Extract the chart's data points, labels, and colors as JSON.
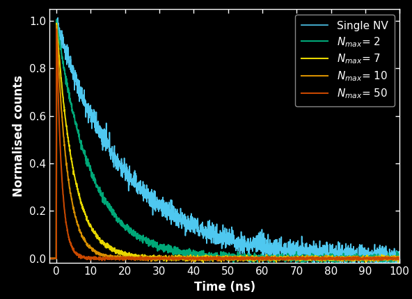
{
  "background_color": "#000000",
  "axes_color": "#000000",
  "text_color": "#ffffff",
  "tick_color": "#ffffff",
  "spine_color": "#ffffff",
  "xlabel": "Time (ns)",
  "ylabel": "Normalised counts",
  "xlim": [
    -2,
    100
  ],
  "ylim": [
    -0.02,
    1.05
  ],
  "xticks": [
    0,
    10,
    20,
    30,
    40,
    50,
    60,
    70,
    80,
    90,
    100
  ],
  "yticks": [
    0.0,
    0.2,
    0.4,
    0.6,
    0.8,
    1.0
  ],
  "series": [
    {
      "label": "Single NV",
      "label_fmt": "Single NV",
      "color": "#4fc8f0",
      "tau": 20.0,
      "noise": 0.022,
      "lw": 1.2,
      "rise_samples": 3,
      "baseline": 0.07
    },
    {
      "label": "N_max= 2",
      "label_fmt": "$N_{max}$= 2",
      "color": "#00a878",
      "tau": 10.0,
      "noise": 0.008,
      "lw": 1.5,
      "rise_samples": 3,
      "baseline": 0.005
    },
    {
      "label": "N_max= 7",
      "label_fmt": "$N_{max}$= 7",
      "color": "#e8d800",
      "tau": 5.0,
      "noise": 0.005,
      "lw": 1.5,
      "rise_samples": 3,
      "baseline": 0.002
    },
    {
      "label": "N_max= 10",
      "label_fmt": "$N_{max}$= 10",
      "color": "#d89000",
      "tau": 3.2,
      "noise": 0.004,
      "lw": 1.5,
      "rise_samples": 3,
      "baseline": 0.001
    },
    {
      "label": "N_max= 50",
      "label_fmt": "$N_{max}$= 50",
      "color": "#c84800",
      "tau": 1.5,
      "noise": 0.003,
      "lw": 1.5,
      "rise_samples": 3,
      "baseline": 0.0
    }
  ],
  "figsize": [
    5.92,
    4.3
  ],
  "dpi": 100,
  "font_size": 11,
  "label_font_size": 12
}
